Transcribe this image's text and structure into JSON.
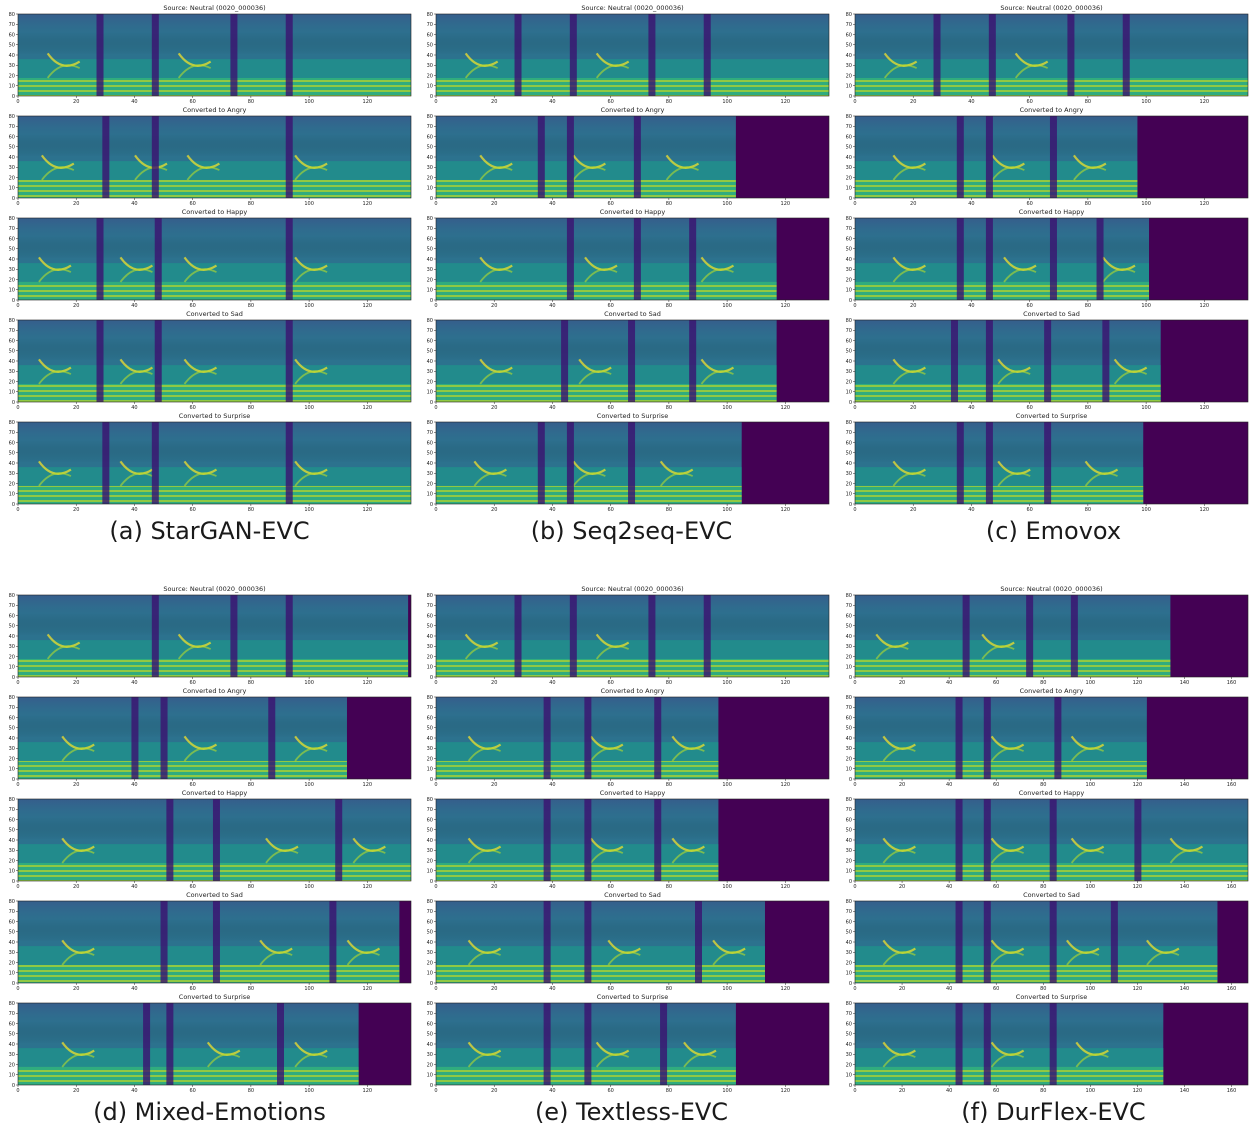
{
  "chart_data": [
    {
      "type": "heatmap",
      "caption": "(a) StarGAN-EVC",
      "colormap": "viridis",
      "xlim": [
        0,
        135
      ],
      "ylim": [
        0,
        80
      ],
      "xticks": [
        "0",
        "20",
        "40",
        "60",
        "80",
        "100",
        "120"
      ],
      "yticks": [
        "0",
        "10",
        "20",
        "30",
        "40",
        "50",
        "60",
        "70",
        "80"
      ],
      "panels": [
        {
          "title": "Source: Neutral (0020_000036)",
          "frames": 135,
          "silence": [
            28,
            47,
            74,
            93
          ],
          "boundaries": [
            15,
            60
          ]
        },
        {
          "title": "Converted to Angry",
          "frames": 135,
          "silence": [
            30,
            47,
            93
          ],
          "boundaries": [
            13,
            45,
            63,
            100
          ]
        },
        {
          "title": "Converted to Happy",
          "frames": 135,
          "silence": [
            28,
            48,
            93
          ],
          "boundaries": [
            12,
            40,
            62,
            100
          ]
        },
        {
          "title": "Converted to Sad",
          "frames": 135,
          "silence": [
            28,
            48,
            93
          ],
          "boundaries": [
            12,
            40,
            62,
            100
          ]
        },
        {
          "title": "Converted to Surprise",
          "frames": 135,
          "silence": [
            30,
            47,
            93
          ],
          "boundaries": [
            12,
            40,
            62,
            100
          ]
        }
      ]
    },
    {
      "type": "heatmap",
      "caption": "(b) Seq2seq-EVC",
      "colormap": "viridis",
      "xlim": [
        0,
        135
      ],
      "ylim": [
        0,
        80
      ],
      "xticks": [
        "0",
        "20",
        "40",
        "60",
        "80",
        "100",
        "120"
      ],
      "yticks": [
        "0",
        "10",
        "20",
        "30",
        "40",
        "50",
        "60",
        "70",
        "80"
      ],
      "panels": [
        {
          "title": "Source: Neutral (0020_000036)",
          "frames": 135,
          "silence": [
            28,
            47,
            74,
            93
          ],
          "boundaries": [
            15,
            60
          ]
        },
        {
          "title": "Converted to Angry",
          "frames": 103,
          "silence": [
            36,
            46,
            69
          ],
          "boundaries": [
            20,
            52,
            84
          ]
        },
        {
          "title": "Converted to Happy",
          "frames": 117,
          "silence": [
            46,
            69,
            88
          ],
          "boundaries": [
            20,
            56,
            96
          ]
        },
        {
          "title": "Converted to Sad",
          "frames": 117,
          "silence": [
            44,
            67,
            88
          ],
          "boundaries": [
            20,
            54,
            96
          ]
        },
        {
          "title": "Converted to Surprise",
          "frames": 105,
          "silence": [
            36,
            46,
            67
          ],
          "boundaries": [
            18,
            52,
            82
          ]
        }
      ]
    },
    {
      "type": "heatmap",
      "caption": "(c) Emovox",
      "colormap": "viridis",
      "xlim": [
        0,
        135
      ],
      "ylim": [
        0,
        80
      ],
      "xticks": [
        "0",
        "20",
        "40",
        "60",
        "80",
        "100",
        "120"
      ],
      "yticks": [
        "0",
        "10",
        "20",
        "30",
        "40",
        "50",
        "60",
        "70",
        "80"
      ],
      "panels": [
        {
          "title": "Source: Neutral (0020_000036)",
          "frames": 135,
          "silence": [
            28,
            47,
            74,
            93
          ],
          "boundaries": [
            15,
            60
          ]
        },
        {
          "title": "Converted to Angry",
          "frames": 97,
          "silence": [
            36,
            46,
            68
          ],
          "boundaries": [
            18,
            52,
            80
          ]
        },
        {
          "title": "Converted to Happy",
          "frames": 101,
          "silence": [
            36,
            46,
            68,
            84
          ],
          "boundaries": [
            18,
            56,
            90
          ]
        },
        {
          "title": "Converted to Sad",
          "frames": 105,
          "silence": [
            34,
            46,
            66,
            86
          ],
          "boundaries": [
            18,
            54,
            94
          ]
        },
        {
          "title": "Converted to Surprise",
          "frames": 99,
          "silence": [
            36,
            46,
            66
          ],
          "boundaries": [
            18,
            54,
            84
          ]
        }
      ]
    },
    {
      "type": "heatmap",
      "caption": "(d) Mixed-Emotions",
      "colormap": "viridis",
      "xlim": [
        0,
        135
      ],
      "ylim": [
        0,
        80
      ],
      "xticks": [
        "0",
        "20",
        "40",
        "60",
        "80",
        "100",
        "120"
      ],
      "yticks": [
        "0",
        "10",
        "20",
        "30",
        "40",
        "50",
        "60",
        "70",
        "80"
      ],
      "panels": [
        {
          "title": "Source: Neutral (0020_000036)",
          "frames": 134,
          "silence": [
            47,
            74,
            93
          ],
          "boundaries": [
            15,
            60
          ]
        },
        {
          "title": "Converted to Angry",
          "frames": 113,
          "silence": [
            40,
            50,
            87
          ],
          "boundaries": [
            20,
            62,
            100
          ]
        },
        {
          "title": "Converted to Happy",
          "frames": 135,
          "silence": [
            52,
            68,
            110
          ],
          "boundaries": [
            20,
            90,
            120
          ]
        },
        {
          "title": "Converted to Sad",
          "frames": 131,
          "silence": [
            50,
            68,
            108
          ],
          "boundaries": [
            20,
            88,
            118
          ]
        },
        {
          "title": "Converted to Surprise",
          "frames": 117,
          "silence": [
            44,
            52,
            90
          ],
          "boundaries": [
            20,
            70,
            100
          ]
        }
      ]
    },
    {
      "type": "heatmap",
      "caption": "(e) Textless-EVC",
      "colormap": "viridis",
      "xlim": [
        0,
        135
      ],
      "ylim": [
        0,
        80
      ],
      "xticks": [
        "0",
        "20",
        "40",
        "60",
        "80",
        "100",
        "120"
      ],
      "yticks": [
        "0",
        "10",
        "20",
        "30",
        "40",
        "50",
        "60",
        "70",
        "80"
      ],
      "panels": [
        {
          "title": "Source: Neutral (0020_000036)",
          "frames": 135,
          "silence": [
            28,
            47,
            74,
            93
          ],
          "boundaries": [
            15,
            60
          ]
        },
        {
          "title": "Converted to Angry",
          "frames": 97,
          "silence": [
            38,
            52,
            76
          ],
          "boundaries": [
            16,
            58,
            86
          ]
        },
        {
          "title": "Converted to Happy",
          "frames": 97,
          "silence": [
            38,
            52,
            76
          ],
          "boundaries": [
            16,
            58,
            86
          ]
        },
        {
          "title": "Converted to Sad",
          "frames": 113,
          "silence": [
            38,
            52,
            90
          ],
          "boundaries": [
            16,
            64,
            100
          ]
        },
        {
          "title": "Converted to Surprise",
          "frames": 103,
          "silence": [
            38,
            52,
            78
          ],
          "boundaries": [
            16,
            60,
            90
          ]
        }
      ]
    },
    {
      "type": "heatmap",
      "caption": "(f) DurFlex-EVC",
      "colormap": "viridis",
      "xlim": [
        0,
        167
      ],
      "ylim": [
        0,
        80
      ],
      "xticks": [
        "0",
        "20",
        "40",
        "60",
        "80",
        "100",
        "120",
        "140",
        "160"
      ],
      "yticks": [
        "0",
        "10",
        "20",
        "30",
        "40",
        "50",
        "60",
        "70",
        "80"
      ],
      "panels": [
        {
          "title": "Source: Neutral (0020_000036)",
          "frames": 134,
          "silence": [
            47,
            74,
            93
          ],
          "boundaries": [
            15,
            60
          ]
        },
        {
          "title": "Converted to Angry",
          "frames": 124,
          "silence": [
            44,
            56,
            86
          ],
          "boundaries": [
            18,
            64,
            98
          ]
        },
        {
          "title": "Converted to Happy",
          "frames": 167,
          "silence": [
            44,
            56,
            84,
            120
          ],
          "boundaries": [
            18,
            64,
            98,
            140
          ]
        },
        {
          "title": "Converted to Sad",
          "frames": 154,
          "silence": [
            44,
            56,
            84,
            110
          ],
          "boundaries": [
            18,
            64,
            96,
            130
          ]
        },
        {
          "title": "Converted to Surprise",
          "frames": 131,
          "silence": [
            44,
            56,
            84
          ],
          "boundaries": [
            18,
            64,
            100
          ]
        }
      ]
    }
  ]
}
